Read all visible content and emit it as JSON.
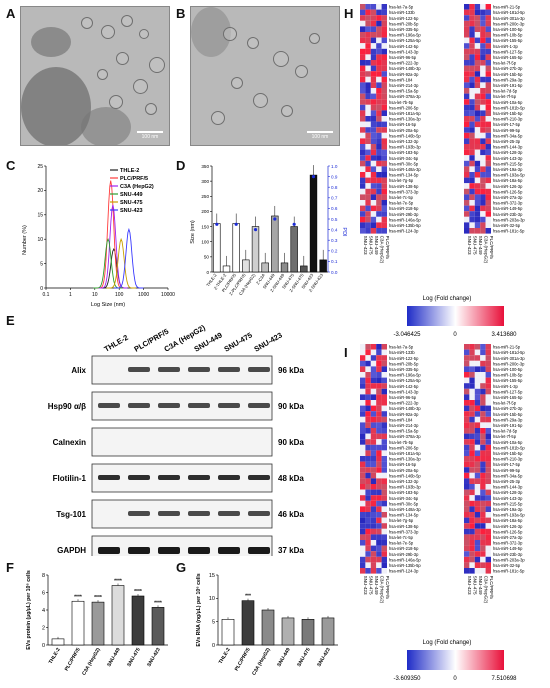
{
  "panels": {
    "A": "A",
    "B": "B",
    "C": "C",
    "D": "D",
    "E": "E",
    "F": "F",
    "G": "G",
    "H": "H",
    "I": "I"
  },
  "tem": {
    "scale_a": "100 nm",
    "scale_b": "100 nm"
  },
  "cell_lines": [
    "THLE-2",
    "PLC/PRF/5",
    "C3A (HepG2)",
    "SNU-449",
    "SNU-475",
    "SNU-423"
  ],
  "colors": {
    "THLE-2": "#222222",
    "PLC/PRF/5": "#ff3b3b",
    "C3A (HepG2)": "#a020f0",
    "SNU-449": "#2e9d2e",
    "SNU-475": "#c8a000",
    "SNU-423": "#3a3aff"
  },
  "chart_data": [
    {
      "panel": "C",
      "type": "line",
      "xlabel": "Log Size (nm)",
      "ylabel": "Number (%)",
      "xlim": [
        0.1,
        10000
      ],
      "ylim": [
        0,
        25
      ],
      "xscale": "log",
      "xticks": [
        "0.1",
        "1",
        "10",
        "100",
        "1000",
        "10000"
      ],
      "yticks": [
        "0",
        "5",
        "10",
        "15",
        "20",
        "25"
      ],
      "series": [
        {
          "name": "THLE-2",
          "peak_x": 60,
          "peak_y": 8
        },
        {
          "name": "PLC/PRF/5",
          "peak_x": 45,
          "peak_y": 22
        },
        {
          "name": "C3A (HepG2)",
          "peak_x": 55,
          "peak_y": 17
        },
        {
          "name": "SNU-449",
          "peak_x": 35,
          "peak_y": 10
        },
        {
          "name": "SNU-475",
          "peak_x": 120,
          "peak_y": 10
        },
        {
          "name": "SNU-423",
          "peak_x": 250,
          "peak_y": 12
        }
      ]
    },
    {
      "panel": "D",
      "type": "bar",
      "ylabel": "Size (nm)",
      "y2label": "PDI",
      "ylim": [
        0,
        350
      ],
      "y2lim": [
        0,
        1.0
      ],
      "yticks": [
        "0",
        "50",
        "100",
        "150",
        "200",
        "250",
        "300",
        "350"
      ],
      "y2ticks": [
        "0.0",
        "0.1",
        "0.2",
        "0.3",
        "0.4",
        "0.5",
        "0.6",
        "0.7",
        "0.8",
        "0.9",
        "1.0"
      ],
      "categories": [
        "THLE-2",
        "Z-THLE-2",
        "PLC/PRF/5",
        "Z-PLC/PRF/5",
        "C3A (HepG2)",
        "Z-C3A",
        "SNU-449",
        "Z-SNU-449",
        "SNU-475",
        "Z-SNU-475",
        "SNU-423",
        "Z-SNU-423"
      ],
      "values": [
        160,
        20,
        160,
        40,
        150,
        30,
        185,
        30,
        150,
        20,
        320,
        40
      ],
      "pdi": [
        0.45,
        null,
        0.45,
        null,
        0.4,
        null,
        0.5,
        null,
        0.45,
        null,
        0.9,
        null
      ]
    },
    {
      "panel": "F",
      "type": "bar",
      "ylabel": "EVs protein (µg/µL) per 10⁶ cells",
      "ylim": [
        0,
        8
      ],
      "yticks": [
        "0",
        "2",
        "4",
        "6",
        "8"
      ],
      "categories": [
        "THLE-2",
        "PLC/PRF/5",
        "C3A (HepG2)",
        "SNU-449",
        "SNU-475",
        "SNU-423"
      ],
      "values": [
        0.7,
        5.0,
        4.9,
        6.8,
        5.6,
        4.3
      ],
      "labels": [
        "",
        "****",
        "****",
        "****",
        "****",
        "****"
      ]
    },
    {
      "panel": "G",
      "type": "bar",
      "ylabel": "EVs RNA (ng/µL) per 10⁶ cells",
      "ylim": [
        0,
        15
      ],
      "yticks": [
        "0",
        "5",
        "10",
        "15"
      ],
      "categories": [
        "THLE-2",
        "PLC/PRF/5",
        "C3A (HepG2)",
        "SNU-449",
        "SNU-475",
        "SNU-423"
      ],
      "values": [
        5.5,
        9.5,
        7.5,
        5.8,
        5.5,
        5.8
      ],
      "labels": [
        "",
        "***",
        "",
        "",
        "",
        ""
      ]
    }
  ],
  "western": {
    "headers": [
      "THLE-2",
      "PLC/PRF/5",
      "C3A (HepG2)",
      "SNU-449",
      "SNU-475",
      "SNU-423"
    ],
    "rows": [
      {
        "name": "Alix",
        "kda": "96 kDa"
      },
      {
        "name": "Hsp90 α/β",
        "kda": "90 kDa"
      },
      {
        "name": "Calnexin",
        "kda": "90 kDa"
      },
      {
        "name": "Flotilin-1",
        "kda": "48 kDa"
      },
      {
        "name": "Tsg-101",
        "kda": "46 kDa"
      },
      {
        "name": "GAPDH",
        "kda": "37 kDa"
      }
    ]
  },
  "heatmap_h": {
    "left_labels": [
      "hsa-let-7a-5p",
      "hsa-miR-133b",
      "hsa-miR-122-5p",
      "hsa-miR-20b-5p",
      "hsa-miR-335-5p",
      "hsa-miR-196a-5p",
      "hsa-miR-125a-5p",
      "hsa-miR-142-5p",
      "hsa-miR-143-3p",
      "hsa-miR-96-5p",
      "hsa-miR-222-3p",
      "hsa-miR-148b-3p",
      "hsa-miR-92a-3p",
      "hsa-miR-184",
      "hsa-miR-214-3p",
      "hsa-miR-15a-5p",
      "hsa-miR-378a-3p",
      "hsa-let-7b-5p",
      "hsa-miR-206-5p",
      "hsa-miR-181a-5p",
      "hsa-miR-130a-3p",
      "hsa-miR-16-5p",
      "hsa-miR-20a-5p",
      "hsa-miR-146b-5p",
      "hsa-miR-132-3p",
      "hsa-miR-193b-3p",
      "hsa-miR-183-5p",
      "hsa-miR-34c-5p",
      "hsa-miR-30c-5p",
      "hsa-miR-148a-3p",
      "hsa-miR-134-5p",
      "hsa-let-7g-5p",
      "hsa-miR-138-5p",
      "hsa-miR-373-3p",
      "hsa-let-7c-5p",
      "hsa-let-7e-5p",
      "hsa-miR-218-5p",
      "hsa-miR-29b-3p",
      "hsa-miR-146a-5p",
      "hsa-miR-135b-5p",
      "hsa-miR-124-3p",
      "hsa-miR-21-5p"
    ],
    "right_labels": [
      "hsa-miR-181d-5p",
      "hsa-miR-301a-3p",
      "hsa-miR-200c-3p",
      "hsa-miR-100-5p",
      "hsa-miR-10b-5p",
      "hsa-miR-155-5p",
      "hsa-miR-1-3p",
      "hsa-miR-127-5p",
      "hsa-miR-165-5p",
      "hsa-let-7f-5p",
      "hsa-miR-27b-3p",
      "hsa-miR-15b-5p",
      "hsa-miR-29a-3p",
      "hsa-miR-191-5p",
      "hsa-let-7d-5p",
      "hsa-let-7f-5p",
      "hsa-miR-10a-5p",
      "hsa-miR-181b-5p",
      "hsa-miR-15b-5p",
      "hsa-miR-210-3p",
      "hsa-miR-17-5p",
      "hsa-miR-99-5p",
      "hsa-miR-34a-5p",
      "hsa-miR-25-3p",
      "hsa-miR-144-3p",
      "hsa-miR-128-3p",
      "hsa-miR-143-3p",
      "hsa-miR-215-5p",
      "hsa-miR-19a-3p",
      "hsa-miR-193a-5p",
      "hsa-miR-18a-5p",
      "hsa-miR-126-3p",
      "hsa-miR-126-5p",
      "hsa-miR-27a-3p",
      "hsa-miR-372-3p",
      "hsa-miR-149-5p",
      "hsa-miR-23b-3p",
      "hsa-miR-203a-3p",
      "hsa-miR-32-5p",
      "hsa-miR-181c-5p"
    ],
    "columns": [
      "SNU-423",
      "SNU-475",
      "SNU-449",
      "C3A (HepG2)",
      "PLC/PRF/5"
    ],
    "legend_title": "Log (Fold change)",
    "min": "-3.046425",
    "mid": "0",
    "max": "3.413680"
  },
  "heatmap_i": {
    "columns": [
      "SNU-423",
      "SNU-475",
      "SNU-449",
      "C3A (HepG2)",
      "PLC/PRF/5"
    ],
    "legend_title": "Log (Fold change)",
    "min": "-3.609350",
    "mid": "0",
    "max": "7.510698"
  }
}
